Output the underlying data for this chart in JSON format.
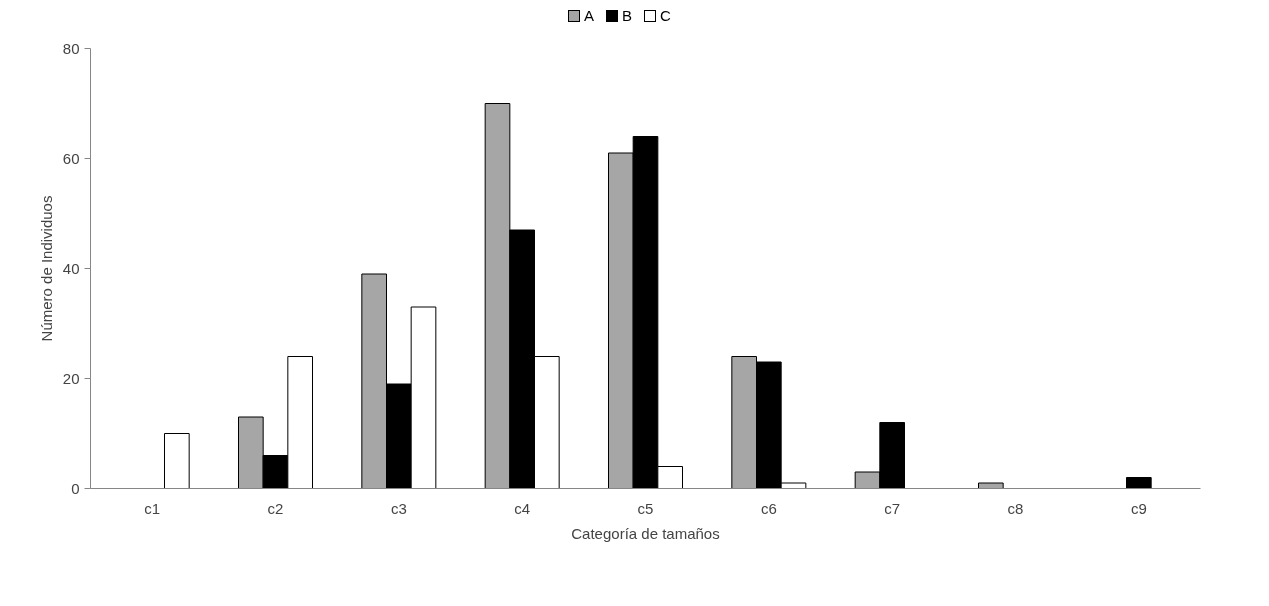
{
  "chart_data": {
    "type": "bar",
    "xlabel": "Categoría de tamaños",
    "ylabel": "Número de Individuos",
    "categories": [
      "c1",
      "c2",
      "c3",
      "c4",
      "c5",
      "c6",
      "c7",
      "c8",
      "c9"
    ],
    "series": [
      {
        "name": "A",
        "color": "#a6a6a6",
        "values": [
          0,
          13,
          39,
          70,
          61,
          24,
          3,
          1,
          0
        ]
      },
      {
        "name": "B",
        "color": "#000000",
        "values": [
          0,
          6,
          19,
          47,
          64,
          23,
          12,
          0,
          2
        ]
      },
      {
        "name": "C",
        "color": "#ffffff",
        "values": [
          10,
          24,
          33,
          24,
          4,
          1,
          0,
          0,
          0
        ]
      }
    ],
    "ylim": [
      0,
      80
    ],
    "yticks": [
      0,
      20,
      40,
      60,
      80
    ],
    "grid": false,
    "legend": "top"
  }
}
